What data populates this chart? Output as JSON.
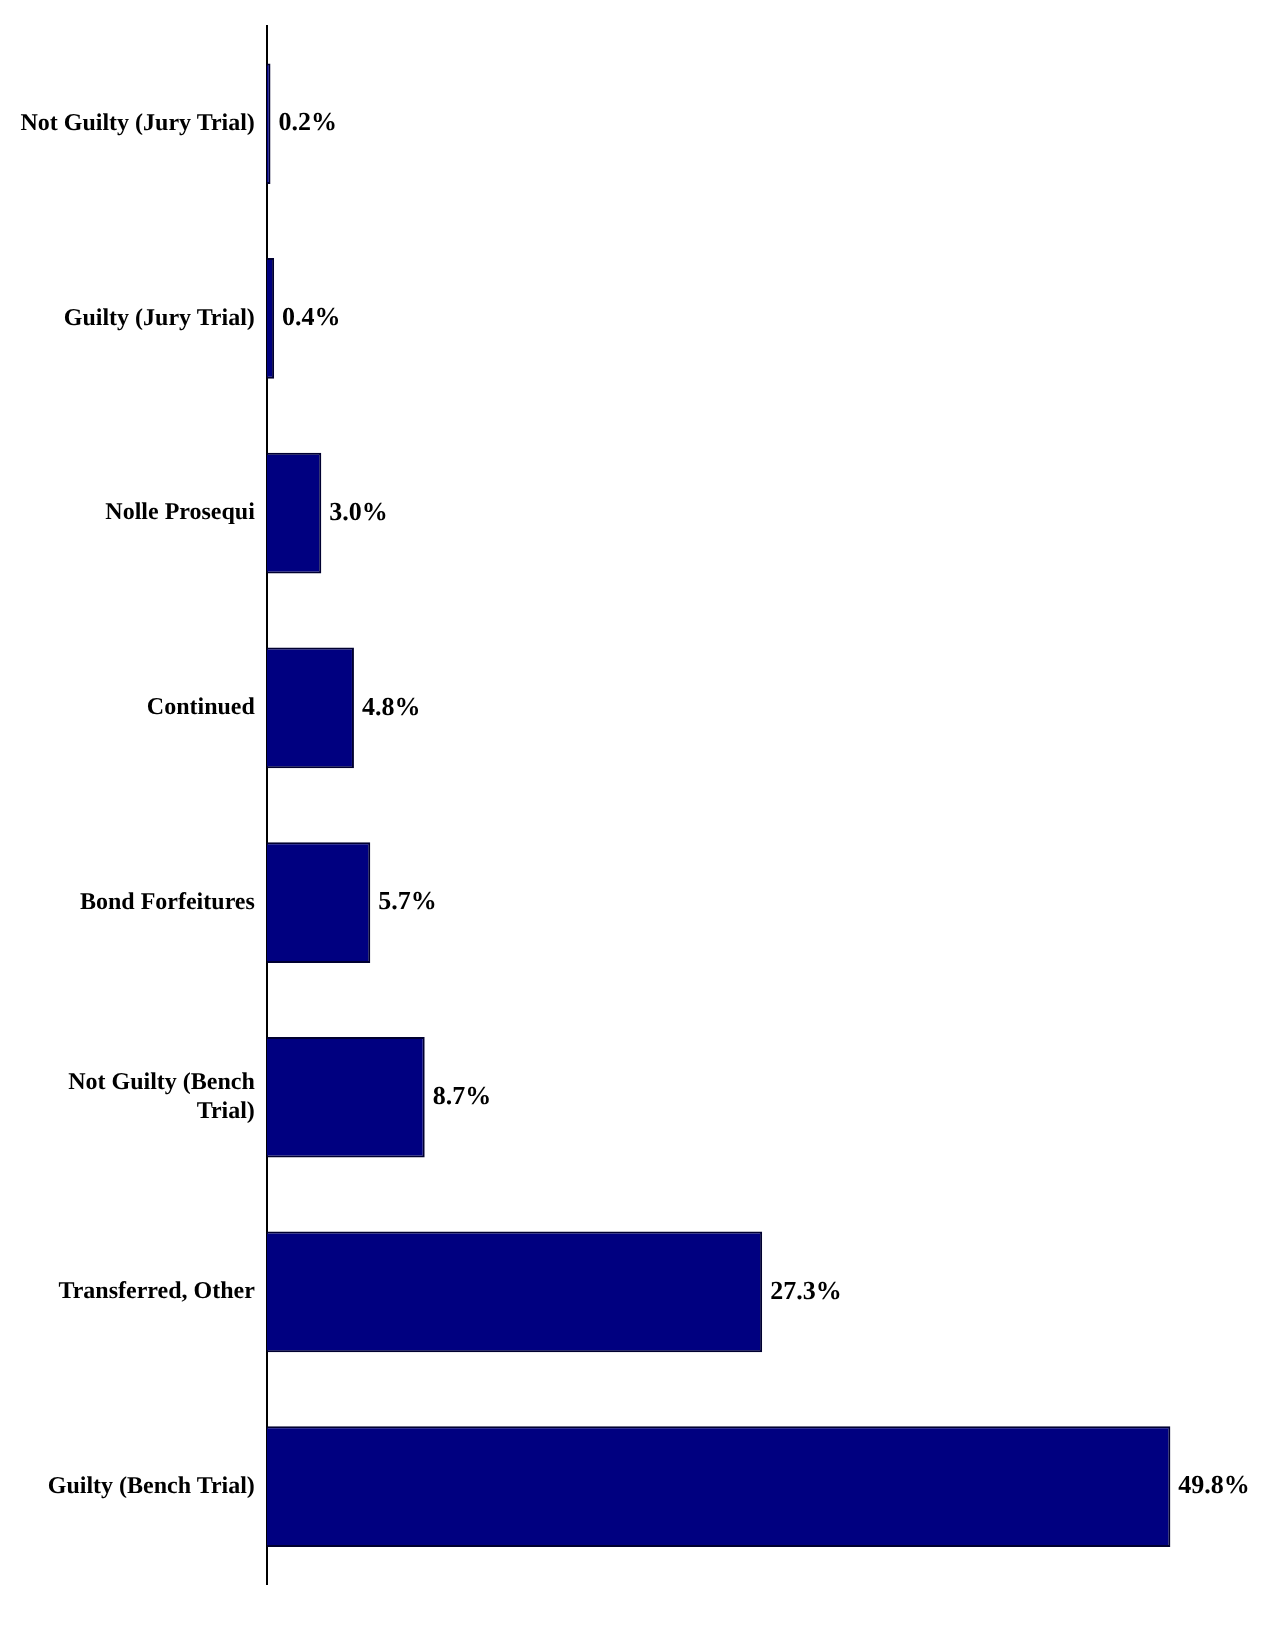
{
  "chart_data": {
    "type": "bar",
    "orientation": "horizontal",
    "categories": [
      "Not Guilty (Jury Trial)",
      "Guilty (Jury Trial)",
      "Nolle Prosequi",
      "Continued",
      "Bond Forfeitures",
      "Not Guilty (Bench Trial)",
      "Transferred, Other",
      "Guilty (Bench Trial)"
    ],
    "values": [
      0.2,
      0.4,
      3.0,
      4.8,
      5.7,
      8.7,
      27.3,
      49.8
    ],
    "value_labels": [
      "0.2%",
      "0.4%",
      "3.0%",
      "4.8%",
      "5.7%",
      "8.7%",
      "27.3%",
      "49.8%"
    ],
    "color": "#000080",
    "grid": false,
    "legend": false,
    "tick_labels": "y"
  }
}
